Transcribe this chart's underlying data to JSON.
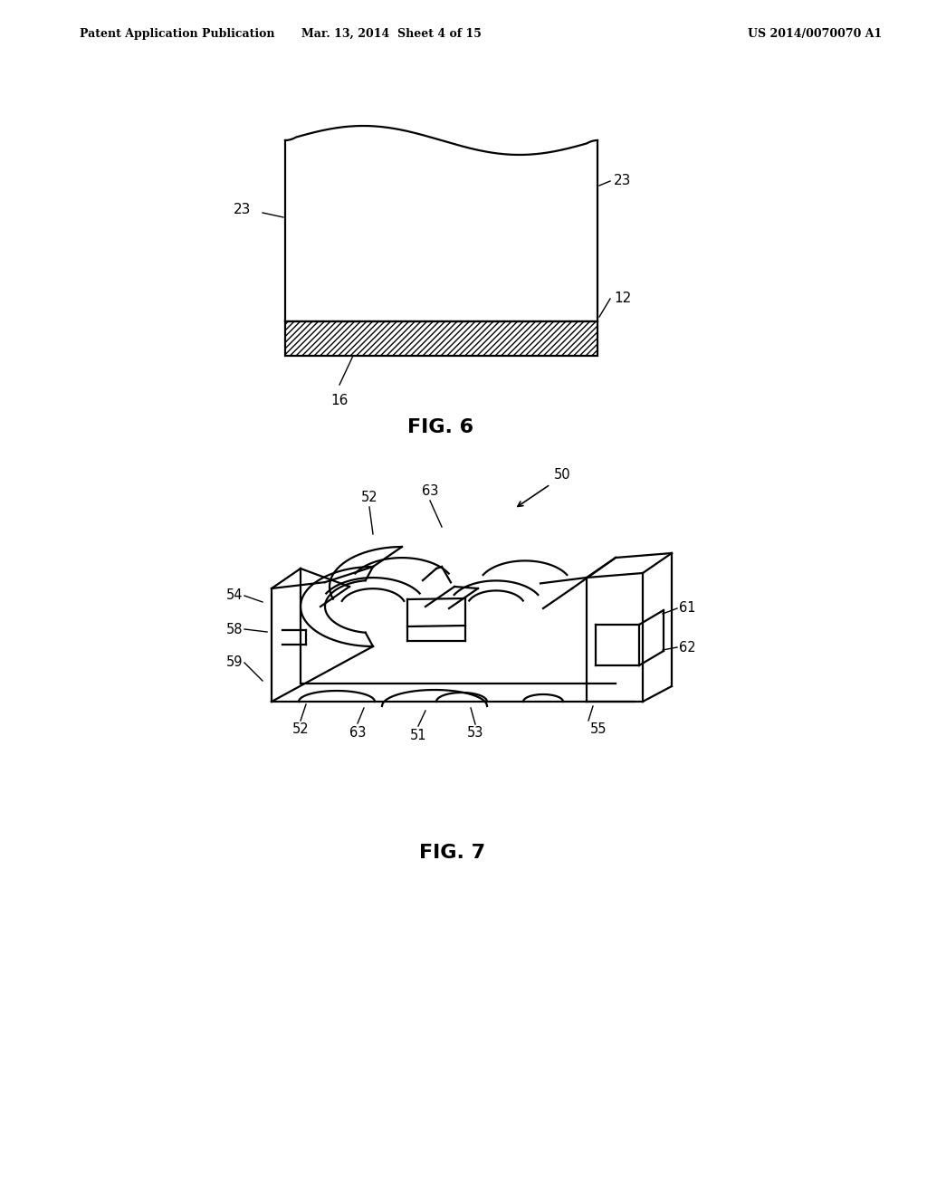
{
  "bg_color": "#ffffff",
  "header_left": "Patent Application Publication",
  "header_center": "Mar. 13, 2014  Sheet 4 of 15",
  "header_right": "US 2014/0070070 A1",
  "fig6_label": "FIG. 6",
  "fig7_label": "FIG. 7",
  "line_color": "#000000"
}
